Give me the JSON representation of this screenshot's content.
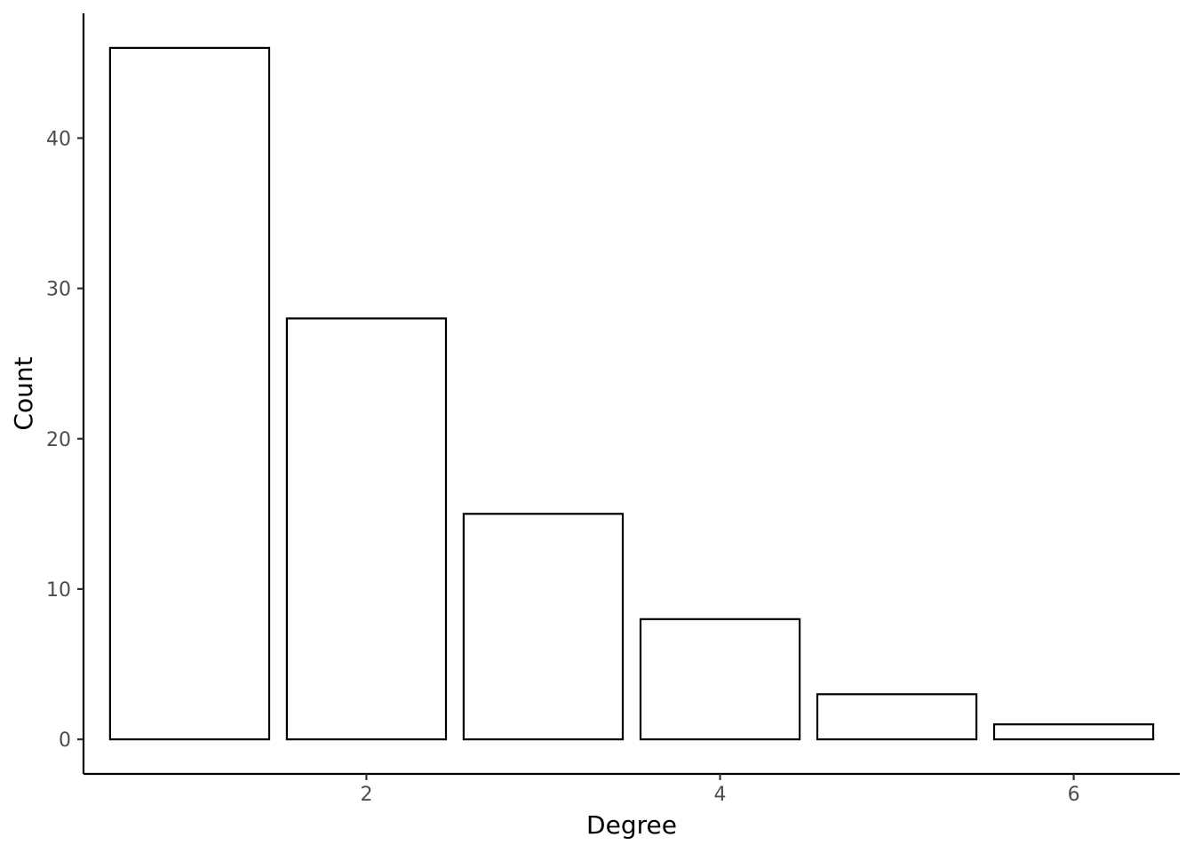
{
  "chart_data": {
    "type": "bar",
    "x": [
      1,
      2,
      3,
      4,
      5,
      6
    ],
    "values": [
      46,
      28,
      15,
      8,
      3,
      1
    ],
    "xlabel": "Degree",
    "ylabel": "Count",
    "xlim": [
      0.4,
      6.6
    ],
    "ylim": [
      -2.3,
      48.3
    ],
    "x_ticks": [
      2,
      4,
      6
    ],
    "y_ticks": [
      0,
      10,
      20,
      30,
      40
    ],
    "grid": false,
    "bar_fill": "#ffffff",
    "bar_stroke": "#000000"
  }
}
